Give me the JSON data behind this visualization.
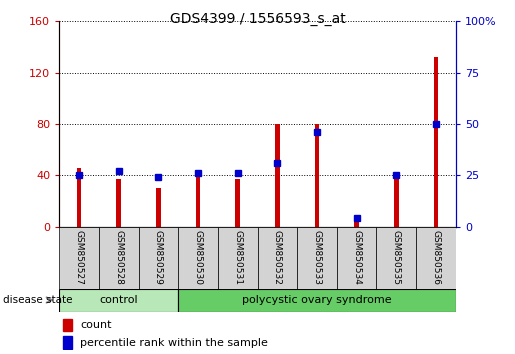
{
  "title": "GDS4399 / 1556593_s_at",
  "samples": [
    "GSM850527",
    "GSM850528",
    "GSM850529",
    "GSM850530",
    "GSM850531",
    "GSM850532",
    "GSM850533",
    "GSM850534",
    "GSM850535",
    "GSM850536"
  ],
  "counts": [
    46,
    37,
    30,
    44,
    37,
    80,
    80,
    5,
    38,
    132
  ],
  "percentiles": [
    25,
    27,
    24,
    26,
    26,
    31,
    46,
    4,
    25,
    50
  ],
  "count_color": "#cc0000",
  "percentile_color": "#0000cc",
  "left_ylim": [
    0,
    160
  ],
  "right_ylim": [
    0,
    100
  ],
  "left_yticks": [
    0,
    40,
    80,
    120,
    160
  ],
  "right_yticks": [
    0,
    25,
    50,
    75,
    100
  ],
  "right_yticklabels": [
    "0",
    "25",
    "50",
    "75",
    "100%"
  ],
  "control_samples": 3,
  "control_label": "control",
  "disease_label": "polycystic ovary syndrome",
  "group_label": "disease state",
  "legend_count": "count",
  "legend_percentile": "percentile rank within the sample",
  "bar_width": 0.12,
  "control_bg": "#aaddaa",
  "disease_bg": "#66cc66",
  "xlabel_bg": "#d3d3d3",
  "grid_color": "#000000"
}
